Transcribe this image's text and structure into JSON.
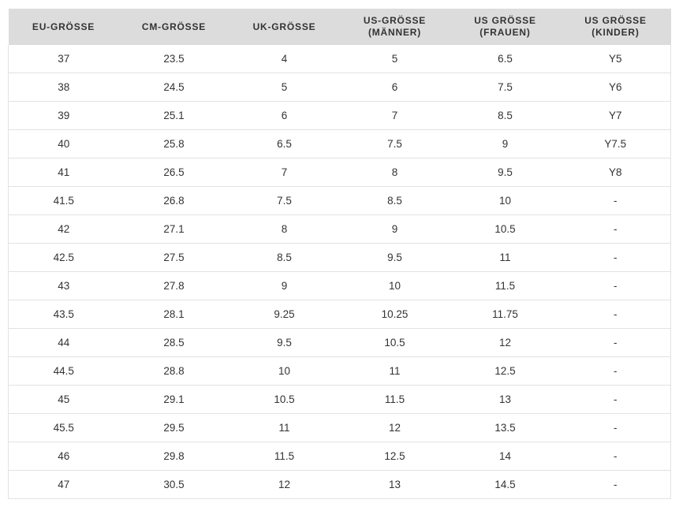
{
  "table": {
    "header": [
      "EU-GRÖSSE",
      "CM-GRÖSSE",
      "UK-GRÖSSE",
      "US-GRÖSSE\n(MÄNNER)",
      "US GRÖSSE\n(FRAUEN)",
      "US GRÖSSE\n(KINDER)"
    ],
    "rows": [
      [
        "37",
        "23.5",
        "4",
        "5",
        "6.5",
        "Y5"
      ],
      [
        "38",
        "24.5",
        "5",
        "6",
        "7.5",
        "Y6"
      ],
      [
        "39",
        "25.1",
        "6",
        "7",
        "8.5",
        "Y7"
      ],
      [
        "40",
        "25.8",
        "6.5",
        "7.5",
        "9",
        "Y7.5"
      ],
      [
        "41",
        "26.5",
        "7",
        "8",
        "9.5",
        "Y8"
      ],
      [
        "41.5",
        "26.8",
        "7.5",
        "8.5",
        "10",
        "-"
      ],
      [
        "42",
        "27.1",
        "8",
        "9",
        "10.5",
        "-"
      ],
      [
        "42.5",
        "27.5",
        "8.5",
        "9.5",
        "11",
        "-"
      ],
      [
        "43",
        "27.8",
        "9",
        "10",
        "11.5",
        "-"
      ],
      [
        "43.5",
        "28.1",
        "9.25",
        "10.25",
        "11.75",
        "-"
      ],
      [
        "44",
        "28.5",
        "9.5",
        "10.5",
        "12",
        "-"
      ],
      [
        "44.5",
        "28.8",
        "10",
        "11",
        "12.5",
        "-"
      ],
      [
        "45",
        "29.1",
        "10.5",
        "11.5",
        "13",
        "-"
      ],
      [
        "45.5",
        "29.5",
        "11",
        "12",
        "13.5",
        "-"
      ],
      [
        "46",
        "29.8",
        "11.5",
        "12.5",
        "14",
        "-"
      ],
      [
        "47",
        "30.5",
        "12",
        "13",
        "14.5",
        "-"
      ]
    ]
  }
}
